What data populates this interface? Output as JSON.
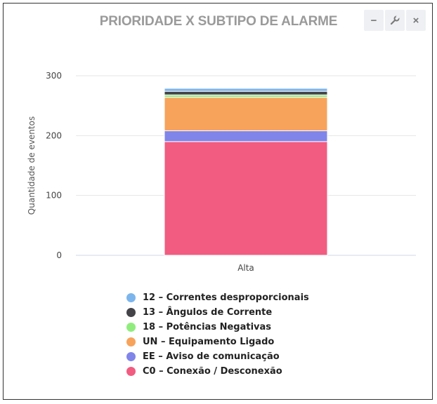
{
  "window": {
    "title": "PRIORIDADE X SUBTIPO DE ALARME",
    "buttons": {
      "minimize_label": "−",
      "settings_icon": "wrench-icon",
      "close_label": "×"
    }
  },
  "chart_data": {
    "type": "bar",
    "stacked": true,
    "categories": [
      "Alta"
    ],
    "title": "PRIORIDADE X SUBTIPO DE ALARME",
    "xlabel": "",
    "ylabel": "Quantidade de eventos",
    "ylim": [
      0,
      300
    ],
    "yticks": [
      0,
      100,
      200,
      300
    ],
    "grid": true,
    "legend_position": "bottom",
    "series": [
      {
        "name": "C0 – Conexão / Desconexão",
        "values": [
          190
        ],
        "color": "#f15c80"
      },
      {
        "name": "EE – Aviso de comunicação",
        "values": [
          18
        ],
        "color": "#8085e9"
      },
      {
        "name": "UN – Equipamento Ligado",
        "values": [
          56
        ],
        "color": "#f7a35c"
      },
      {
        "name": "18 – Potências Negativas",
        "values": [
          4
        ],
        "color": "#90ed7d"
      },
      {
        "name": "13 – Ângulos de Corrente",
        "values": [
          6
        ],
        "color": "#434348"
      },
      {
        "name": "12 – Correntes desproporcionais",
        "values": [
          5
        ],
        "color": "#7cb5ec"
      }
    ]
  }
}
